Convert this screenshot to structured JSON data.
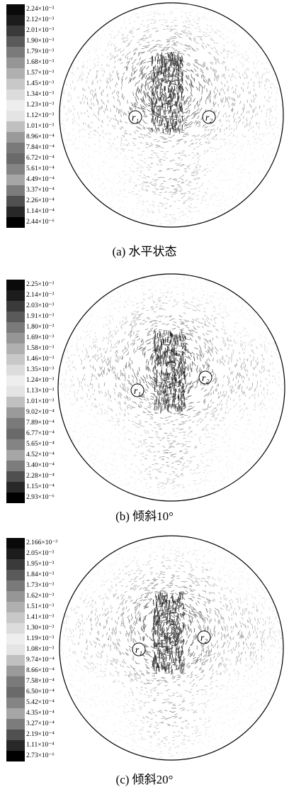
{
  "chart_data": [
    {
      "type": "heatmap",
      "title": "",
      "caption": "(a) 水平状态",
      "colorbar_ticks": [
        "2.24×10⁻³",
        "2.12×10⁻³",
        "2.01×10⁻³",
        "1.90×10⁻³",
        "1.79×10⁻³",
        "1.68×10⁻³",
        "1.57×10⁻³",
        "1.45×10⁻³",
        "1.34×10⁻³",
        "1.23×10⁻³",
        "1.12×10⁻³",
        "1.01×10⁻³",
        "8.96×10⁻⁴",
        "7.84×10⁻⁴",
        "6.72×10⁻⁴",
        "5.61×10⁻⁴",
        "4.49×10⁻⁴",
        "3.37×10⁻⁴",
        "2.26×10⁻⁴",
        "1.14×10⁻⁴",
        "2.44×10⁻⁶"
      ],
      "markers": [
        "r1",
        "r2"
      ],
      "marker_labels": [
        "r₁",
        "r₂"
      ]
    },
    {
      "type": "heatmap",
      "title": "",
      "caption": "(b) 倾斜10°",
      "colorbar_ticks": [
        "2.25×10⁻³",
        "2.14×10⁻³",
        "2.03×10⁻³",
        "1.91×10⁻³",
        "1.80×10⁻³",
        "1.69×10⁻³",
        "1.58×10⁻³",
        "1.46×10⁻³",
        "1.35×10⁻³",
        "1.24×10⁻³",
        "1.13×10⁻³",
        "1.01×10⁻³",
        "9.02×10⁻⁴",
        "7.89×10⁻⁴",
        "6.77×10⁻⁴",
        "5.65×10⁻⁴",
        "4.52×10⁻⁴",
        "3.40×10⁻⁴",
        "2.28×10⁻⁴",
        "1.15×10⁻⁴",
        "2.93×10⁻⁶"
      ],
      "markers": [
        "r1",
        "r2"
      ],
      "marker_labels": [
        "r₁",
        "r₂"
      ]
    },
    {
      "type": "heatmap",
      "title": "",
      "caption": "(c) 倾斜20°",
      "colorbar_ticks": [
        "2.166×10⁻³",
        "2.05×10⁻³",
        "1.95×10⁻³",
        "1.84×10⁻³",
        "1.73×10⁻³",
        "1.62×10⁻³",
        "1.51×10⁻³",
        "1.41×10⁻³",
        "1.30×10⁻³",
        "1.19×10⁻³",
        "1.08×10⁻³",
        "9.74×10⁻⁴",
        "8.66×10⁻⁴",
        "7.58×10⁻⁴",
        "6.50×10⁻⁴",
        "5.42×10⁻⁴",
        "4.35×10⁻⁴",
        "3.27×10⁻⁴",
        "2.19×10⁻⁴",
        "1.11×10⁻⁴",
        "2.73×10⁻⁶"
      ],
      "markers": [
        "r1",
        "r2"
      ],
      "marker_labels": [
        "r₁",
        "r₂"
      ]
    }
  ],
  "colorbar_colors": [
    "#0a0a0a",
    "#1c1c1c",
    "#3a3a3a",
    "#5a5a5a",
    "#7a7a7a",
    "#969696",
    "#b0b0b0",
    "#c8c8c8",
    "#dcdcdc",
    "#eeeeee",
    "#e4e4e4",
    "#c0c0c0",
    "#9a9a9a",
    "#7a7a7a",
    "#6a6a6a",
    "#848484",
    "#a6a6a6",
    "#7c7c7c",
    "#505050",
    "#282828",
    "#000000"
  ]
}
